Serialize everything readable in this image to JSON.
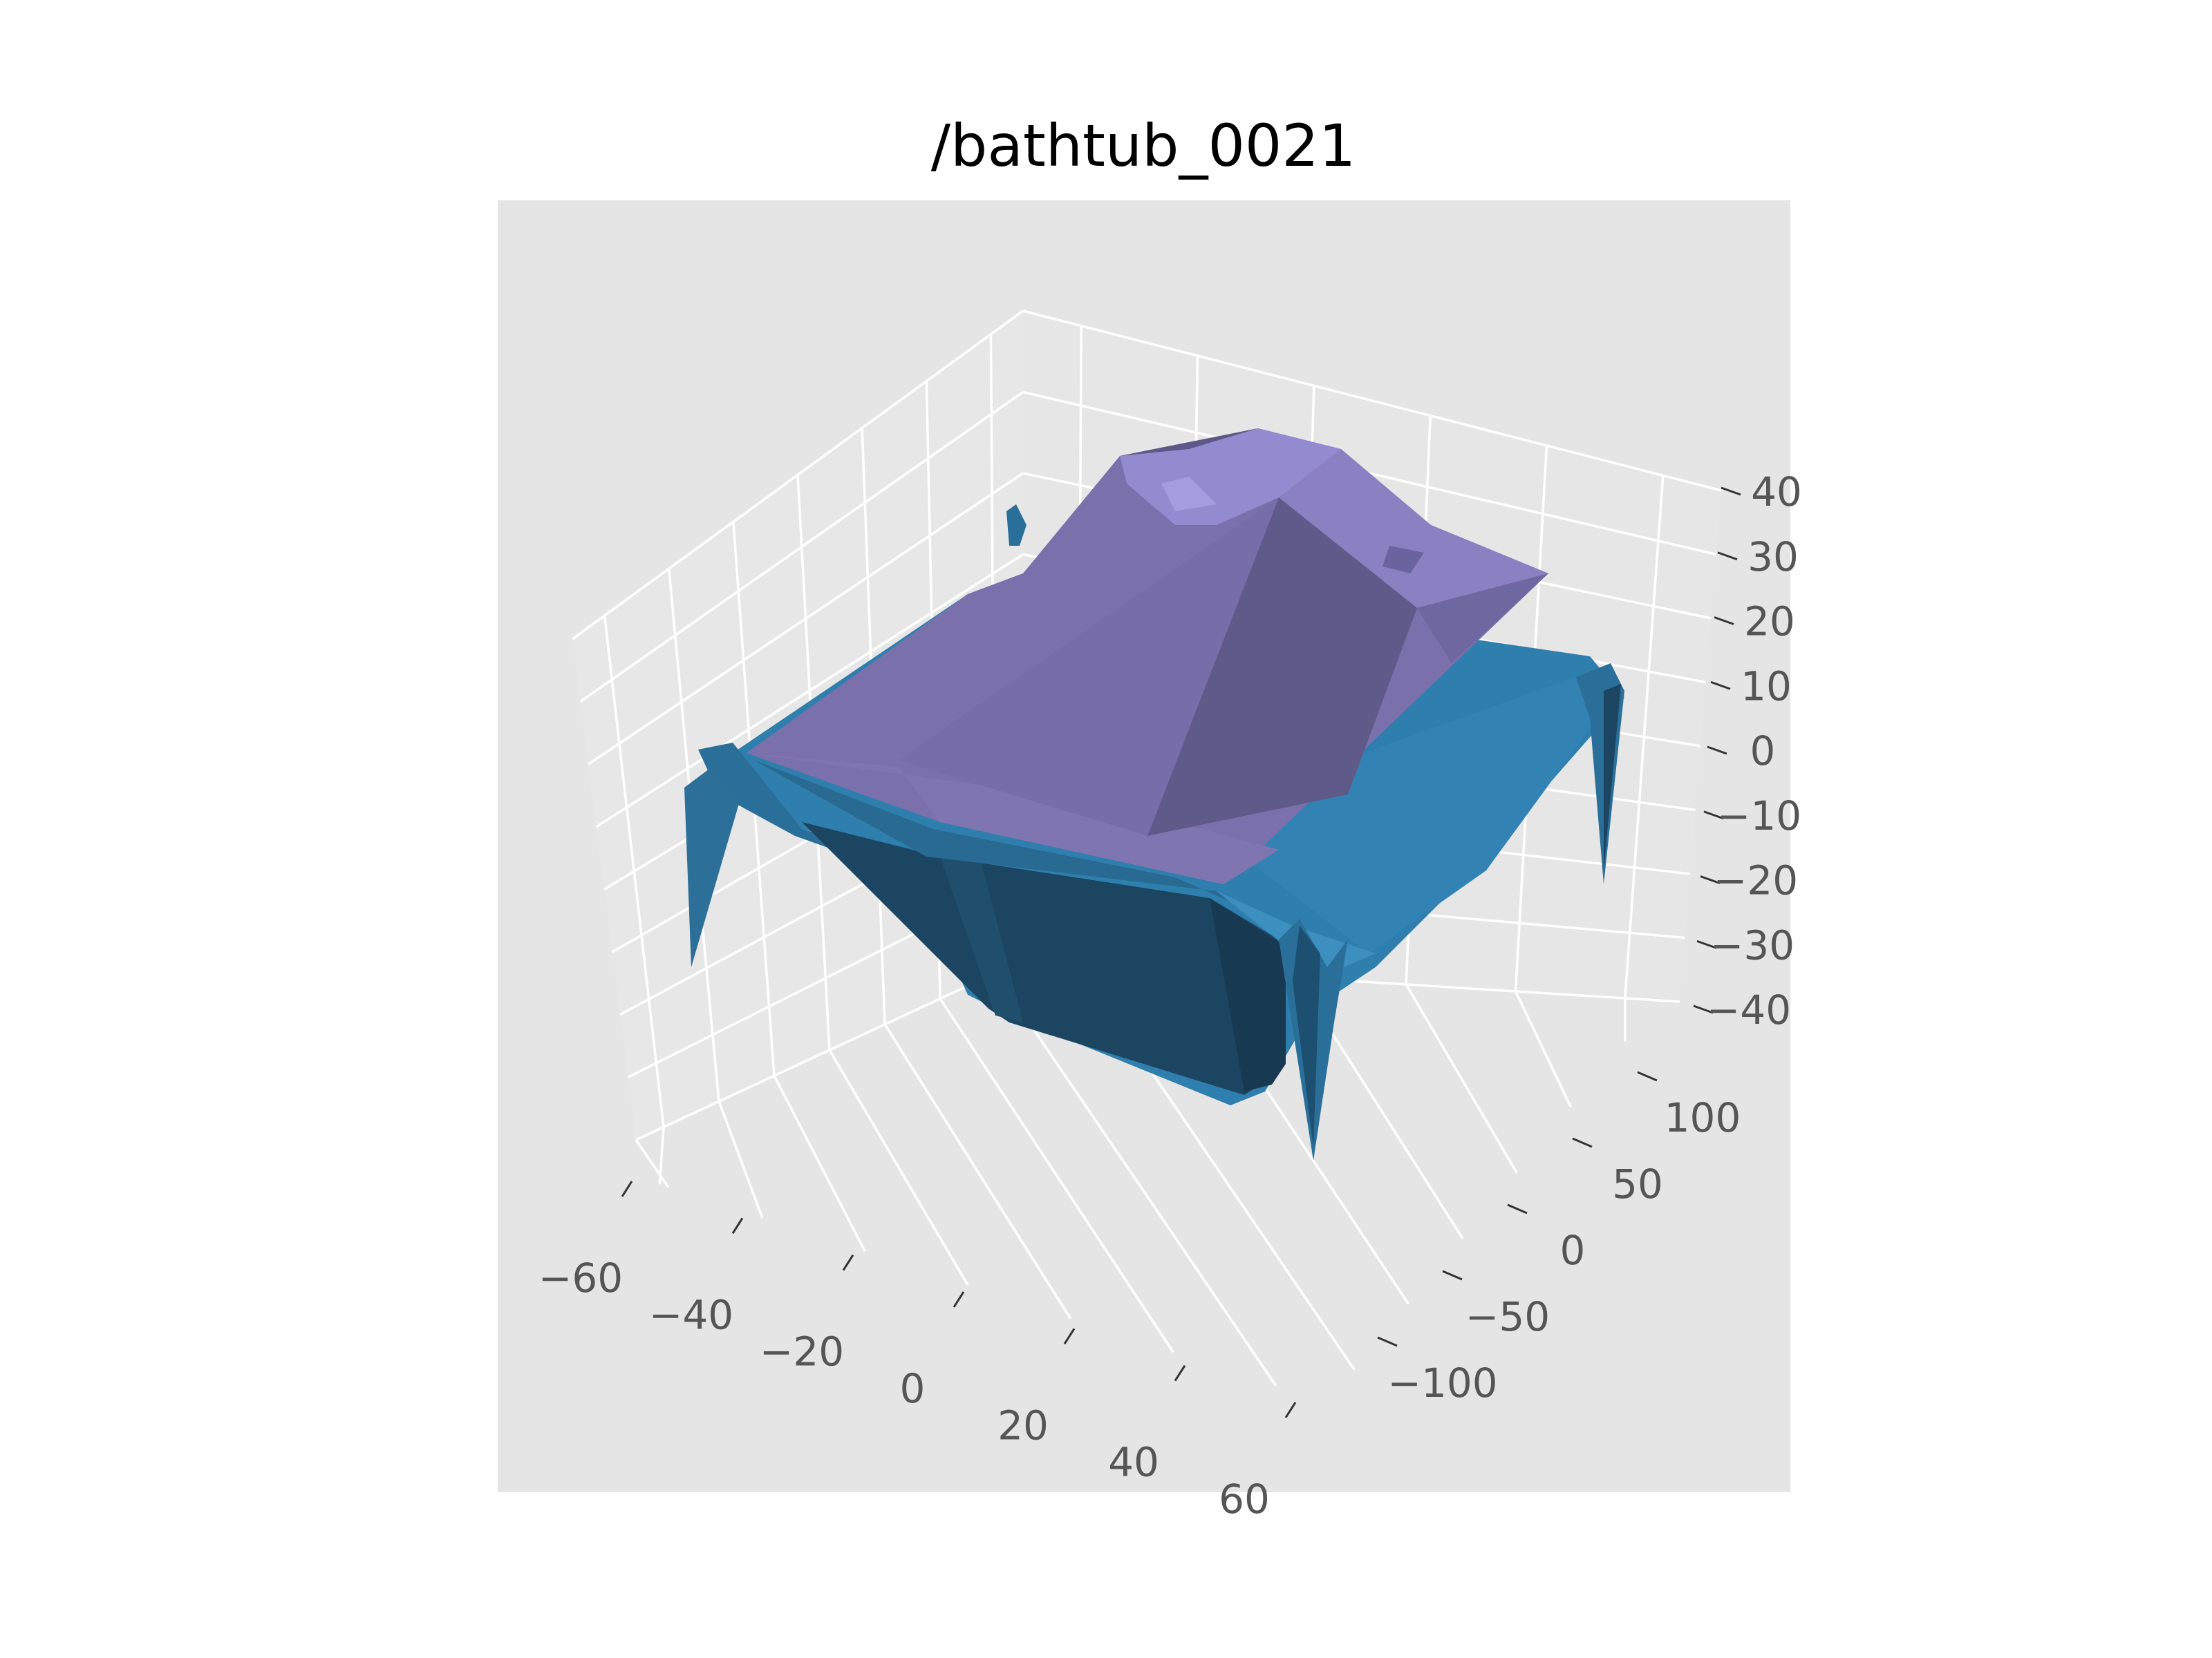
{
  "chart_data": {
    "type": "surface3d",
    "title": "/bathtub_0021",
    "xlabel": "",
    "ylabel": "",
    "zlabel": "",
    "grid": true,
    "background_color": "#e5e5e5",
    "grid_color": "#ffffff",
    "x_ticks": [
      "−60",
      "−40",
      "−20",
      "0",
      "20",
      "40",
      "60"
    ],
    "y_ticks": [
      "−100",
      "−50",
      "0",
      "50",
      "100"
    ],
    "z_ticks": [
      "−40",
      "−30",
      "−20",
      "−10",
      "0",
      "10",
      "20",
      "30",
      "40"
    ],
    "xlim": [
      -70,
      70
    ],
    "ylim": [
      -130,
      130
    ],
    "zlim": [
      -45,
      45
    ],
    "series": [
      {
        "role": "tub-body",
        "color": "#2e7fae"
      },
      {
        "role": "tub-inner-wall",
        "color": "#1b4560"
      },
      {
        "role": "cover-surface",
        "color": "#7a70ab"
      },
      {
        "role": "cover-highlight",
        "color": "#948ad0"
      }
    ]
  }
}
